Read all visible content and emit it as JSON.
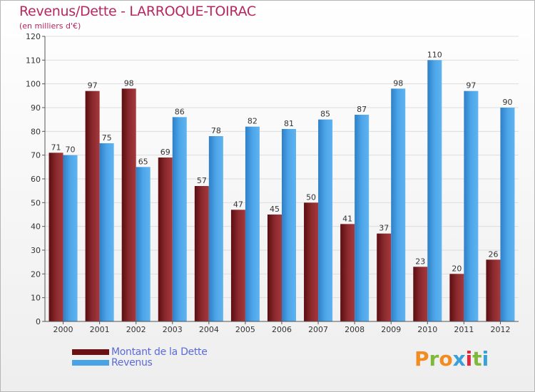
{
  "title": "Revenus/Dette - LARROQUE-TOIRAC",
  "subtitle": "(en milliers d'€)",
  "colors": {
    "dette": "#7a1a1d",
    "revenus": "#4aa3e6",
    "title": "#b5275d"
  },
  "chart_data": {
    "type": "bar",
    "title": "Revenus/Dette - LARROQUE-TOIRAC",
    "ylabel": "(en milliers d'€)",
    "xlabel": "",
    "ylim": [
      0,
      120
    ],
    "yticks": [
      0,
      10,
      20,
      30,
      40,
      50,
      60,
      70,
      80,
      90,
      100,
      110,
      120
    ],
    "grid": true,
    "categories": [
      "2000",
      "2001",
      "2002",
      "2003",
      "2004",
      "2005",
      "2006",
      "2007",
      "2008",
      "2009",
      "2010",
      "2011",
      "2012"
    ],
    "series": [
      {
        "name": "Montant de la Dette",
        "values": [
          71,
          97,
          98,
          69,
          57,
          47,
          45,
          50,
          41,
          37,
          23,
          20,
          26
        ]
      },
      {
        "name": "Revenus",
        "values": [
          70,
          75,
          65,
          86,
          78,
          82,
          81,
          85,
          87,
          98,
          110,
          97,
          90
        ]
      }
    ]
  },
  "legend": {
    "items": [
      {
        "label": "Montant de la Dette"
      },
      {
        "label": "Revenus"
      }
    ]
  },
  "logo": {
    "text": "Proxiti"
  }
}
